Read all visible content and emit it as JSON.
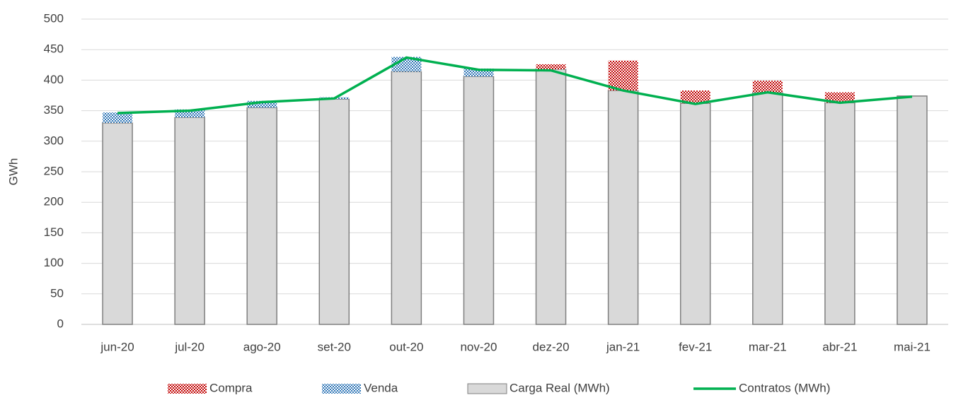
{
  "chart_data": {
    "type": "bar",
    "stacked": true,
    "y_label": "GWh",
    "categories": [
      "jun-20",
      "jul-20",
      "ago-20",
      "set-20",
      "out-20",
      "nov-20",
      "dez-20",
      "jan-21",
      "fev-21",
      "mar-21",
      "abr-21",
      "mai-21"
    ],
    "series": [
      {
        "name": "Compra",
        "type": "bar",
        "color": "#c00000",
        "pattern": "checker",
        "values": [
          null,
          null,
          null,
          null,
          null,
          null,
          8,
          49,
          21,
          19,
          17,
          null
        ]
      },
      {
        "name": "Venda",
        "type": "bar",
        "color": "#2e75b6",
        "pattern": "checker",
        "values": [
          17,
          13,
          11,
          3,
          24,
          13,
          null,
          null,
          null,
          null,
          null,
          null
        ]
      },
      {
        "name": "Carga Real (MWh)",
        "type": "bar",
        "color": "#d9d9d9",
        "values": [
          330,
          339,
          355,
          369,
          414,
          406,
          418,
          383,
          362,
          380,
          363,
          374
        ]
      },
      {
        "name": "Contratos (MWh)",
        "type": "line",
        "color": "#00b050",
        "values": [
          346,
          350,
          364,
          370,
          437,
          417,
          416,
          383,
          361,
          380,
          363,
          373
        ]
      }
    ],
    "ylim": [
      0,
      500
    ],
    "yticks": [
      0,
      50,
      100,
      150,
      200,
      250,
      300,
      350,
      400,
      450,
      500
    ],
    "grid": true,
    "legend": "bottom"
  }
}
